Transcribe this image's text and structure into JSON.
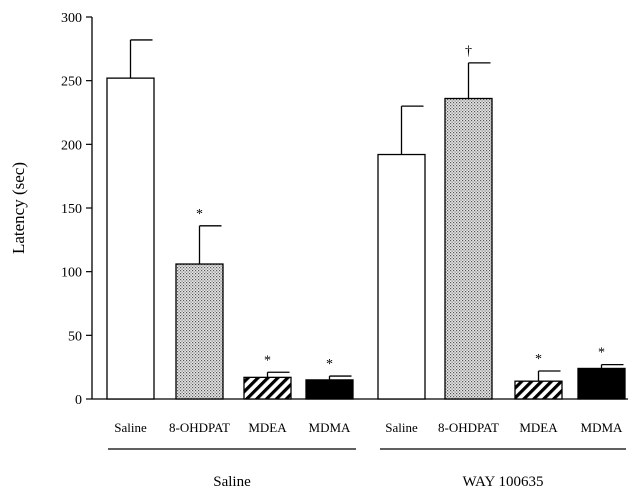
{
  "chart_data": {
    "type": "bar",
    "ylabel": "Latency (sec)",
    "ylim": [
      0,
      300
    ],
    "yticks": [
      0,
      50,
      100,
      150,
      200,
      250,
      300
    ],
    "groups": [
      {
        "label": "Saline",
        "bars": [
          {
            "category": "Saline",
            "value": 252,
            "error": 30,
            "pattern": "open",
            "marker": ""
          },
          {
            "category": "8-OHDPAT",
            "value": 106,
            "error": 30,
            "pattern": "dotted",
            "marker": "*"
          },
          {
            "category": "MDEA",
            "value": 17,
            "error": 4,
            "pattern": "hatched",
            "marker": "*"
          },
          {
            "category": "MDMA",
            "value": 15,
            "error": 3,
            "pattern": "solid",
            "marker": "*"
          }
        ]
      },
      {
        "label": "WAY 100635",
        "bars": [
          {
            "category": "Saline",
            "value": 192,
            "error": 38,
            "pattern": "open",
            "marker": ""
          },
          {
            "category": "8-OHDPAT",
            "value": 236,
            "error": 28,
            "pattern": "dotted",
            "marker": "†"
          },
          {
            "category": "MDEA",
            "value": 14,
            "error": 8,
            "pattern": "hatched",
            "marker": "*"
          },
          {
            "category": "MDMA",
            "value": 24,
            "error": 3,
            "pattern": "solid",
            "marker": "*"
          }
        ]
      }
    ],
    "colors": {
      "stroke": "#000000",
      "open": "#ffffff",
      "solid": "#000000",
      "dotted_fill": "#c8c8c8"
    }
  }
}
